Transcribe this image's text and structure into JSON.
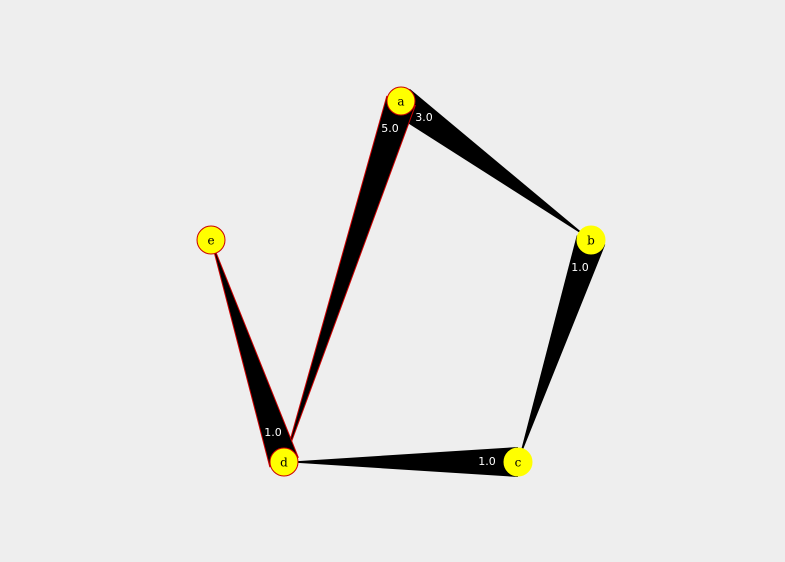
{
  "graph": {
    "nodes": [
      {
        "id": "a",
        "label": "a",
        "fill": "#ffff00",
        "stroke": "#cc0000"
      },
      {
        "id": "b",
        "label": "b",
        "fill": "#ffff00",
        "stroke": "#ffff00"
      },
      {
        "id": "c",
        "label": "c",
        "fill": "#ffff00",
        "stroke": "#ffff00"
      },
      {
        "id": "d",
        "label": "d",
        "fill": "#ffff00",
        "stroke": "#cc0000"
      },
      {
        "id": "e",
        "label": "e",
        "fill": "#ffff00",
        "stroke": "#cc0000"
      }
    ],
    "edges": [
      {
        "from": "a",
        "to": "b",
        "weight": "3.0",
        "highlighted": false
      },
      {
        "from": "b",
        "to": "c",
        "weight": "1.0",
        "highlighted": false
      },
      {
        "from": "c",
        "to": "d",
        "weight": "1.0",
        "highlighted": false
      },
      {
        "from": "a",
        "to": "d",
        "weight": "5.0",
        "highlighted": true
      },
      {
        "from": "d",
        "to": "e",
        "weight": "1.0",
        "highlighted": true
      }
    ],
    "colors": {
      "background": "#eeeeee",
      "edge_fill": "#000000",
      "highlight_stroke": "#cc0000",
      "node_fill": "#ffff00",
      "edge_label": "#ffffff"
    }
  }
}
